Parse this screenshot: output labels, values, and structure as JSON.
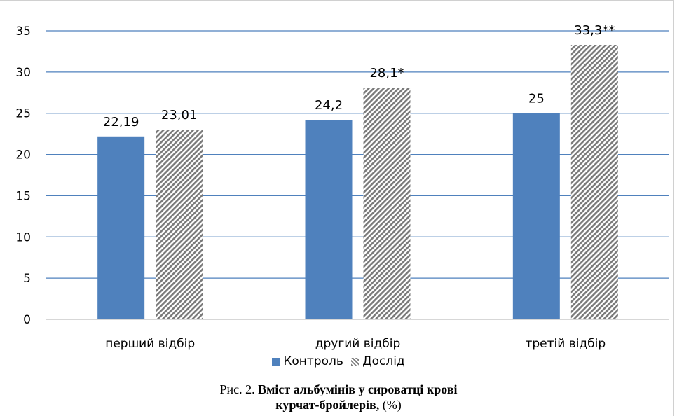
{
  "chart_data": {
    "type": "bar",
    "categories": [
      "перший відбір",
      "другий відбір",
      "третій відбір"
    ],
    "series": [
      {
        "name": "Контроль",
        "values": [
          22.19,
          24.2,
          25
        ],
        "labels": [
          "22,19",
          "24,2",
          "25"
        ],
        "color": "#4f81bd",
        "pattern": "solid"
      },
      {
        "name": "Дослід",
        "values": [
          23.01,
          28.1,
          33.3
        ],
        "labels": [
          "23,01",
          "28,1*",
          "33,3**"
        ],
        "color": "#808080",
        "pattern": "diagonal-hatch"
      }
    ],
    "ylim": [
      0,
      35
    ],
    "yticks": [
      "0",
      "5",
      "10",
      "15",
      "20",
      "25",
      "30",
      "35"
    ],
    "grid": true,
    "grid_color": "#4f81bd",
    "legend_position": "bottom"
  },
  "caption": {
    "prefix": "Рис. 2. ",
    "bold_line1": "Вміст альбумінів у сироватці крові",
    "bold_line2": "курчат-бройлерів,",
    "suffix": " (%)"
  }
}
